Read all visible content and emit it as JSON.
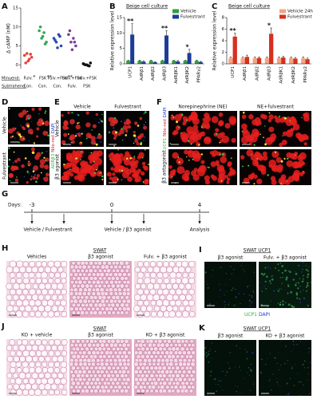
{
  "panel_letters": [
    "A",
    "B",
    "C",
    "D",
    "E",
    "F",
    "G",
    "H",
    "I",
    "J",
    "K"
  ],
  "chart_data": [
    {
      "type": "strip",
      "ylabel": "Δ cAMP (nM)",
      "ylim": [
        -1,
        15
      ],
      "yticks": [
        0,
        5,
        10,
        15
      ],
      "minuend_label": "Minuend:",
      "subtrahend_label": "Subtrahend:",
      "minuend": [
        "Fulv.",
        "FSK",
        "Fulv.+FSK",
        "Fulv.+FSK",
        "Fulv.+FSK"
      ],
      "subtrahend": [
        "Con.",
        "Con.",
        "Con.",
        "Fulv.",
        "FSK"
      ],
      "significance": [
        "*",
        "**",
        "**",
        null,
        null
      ],
      "significance_color": "#e8413a",
      "groups": [
        {
          "color": "#e8413a",
          "values": [
            2.5,
            3,
            1.5,
            2,
            0.5,
            1,
            2.8
          ]
        },
        {
          "color": "#2fa84f",
          "values": [
            9,
            7,
            8.5,
            6,
            10,
            7.5,
            5.5
          ]
        },
        {
          "color": "#2b4bb0",
          "values": [
            7,
            6,
            8,
            5,
            6.5,
            4.5,
            7.5
          ]
        },
        {
          "color": "#7a3d9c",
          "values": [
            8,
            6,
            7,
            5,
            9,
            4,
            6
          ]
        },
        {
          "color": "#111111",
          "values": [
            0.3,
            0,
            -0.2,
            0.5,
            0.1,
            0,
            -0.3
          ]
        }
      ]
    },
    {
      "type": "bar",
      "title": "Beige cell culture",
      "ylabel": "Relative expression level",
      "categories": [
        "UCP1",
        "AdRβ1",
        "AdRβ2",
        "AdRβ3",
        "AdRβK1",
        "AdRβK2",
        "PPARγ2"
      ],
      "ylim": [
        0,
        15
      ],
      "yticks": [
        0,
        5,
        10,
        15
      ],
      "legend": "upper right",
      "series": [
        {
          "name": "Vehicle",
          "color": "#2e9e3e",
          "values": [
            1,
            1,
            1,
            1,
            1,
            1,
            1
          ],
          "errors": [
            0.2,
            0.2,
            0.2,
            0.2,
            0.2,
            0.2,
            0.2
          ]
        },
        {
          "name": "Fulvestrant",
          "color": "#1c3d96",
          "values": [
            9.5,
            0.7,
            0.5,
            9.2,
            0.8,
            3.5,
            0.6
          ],
          "errors": [
            3.5,
            0.3,
            0.2,
            1.5,
            0.3,
            1.2,
            0.2
          ],
          "stars": [
            "**",
            null,
            null,
            "**",
            null,
            "*",
            null
          ]
        }
      ]
    },
    {
      "type": "bar",
      "title": "Beige cell culture",
      "ylabel": "Relative expression level",
      "categories": [
        "UCP1",
        "AdRβ1",
        "AdRβ2",
        "AdRβ3",
        "AdRβK1",
        "AdRβK2",
        "PPARγ2"
      ],
      "ylim": [
        0,
        8
      ],
      "yticks": [
        0,
        2,
        4,
        6,
        8
      ],
      "legend": "upper right",
      "series": [
        {
          "name": "Vehicle 24h",
          "color": "#f4a582",
          "values": [
            1,
            1,
            1,
            1,
            1,
            1,
            1
          ],
          "errors": [
            0.2,
            0.2,
            0.2,
            0.2,
            0.2,
            0.2,
            0.2
          ]
        },
        {
          "name": "Fulvestrant 24h",
          "color": "#d7301f",
          "values": [
            4.7,
            1.2,
            1,
            5.2,
            1.1,
            0.9,
            0.8
          ],
          "errors": [
            0.6,
            0.3,
            0.2,
            1,
            0.2,
            0.2,
            0.2
          ],
          "stars": [
            "**",
            null,
            null,
            "*",
            null,
            null,
            null
          ]
        }
      ]
    }
  ],
  "panels": {
    "D": {
      "rows": [
        "Vehicle",
        "Fulvestrant"
      ],
      "stain": [
        "ADRβ3",
        "Nile-red",
        "DAPI"
      ]
    },
    "E": {
      "columns": [
        "Vehicle",
        "Fulvestrant"
      ],
      "rows": [
        "Vehicle",
        "β3 agonist"
      ]
    },
    "F": {
      "columns": [
        "Norepinephrine (NE)",
        "NE+fulvestrant"
      ],
      "rows": [
        "β3 antagonist"
      ],
      "stain": [
        "UCP1",
        "Nile-red",
        "DAPI"
      ]
    },
    "G": {
      "days_label": "Days:",
      "days": [
        -3,
        0,
        4
      ],
      "steps": [
        "Vehicle / Fulvestrant",
        "Vehicle / β3 agonist",
        "Analysis"
      ]
    },
    "H": {
      "title": "SWAT",
      "columns": [
        "Vehicles",
        "β3 agonist",
        "Fulv. + β3 agonist"
      ]
    },
    "I": {
      "title": "SWAT UCP1",
      "columns": [
        "β3 agonist",
        "Fulv. + β3 agonist"
      ],
      "stain": [
        "UCP1",
        "DAPI"
      ]
    },
    "J": {
      "title": "SWAT",
      "columns": [
        "KO + vehicle",
        "β3 agonist",
        "KO + β3 agonist"
      ]
    },
    "K": {
      "title": "SWAT UCP1",
      "columns": [
        "β3 agonist",
        "KO + β3 agonist"
      ]
    }
  }
}
